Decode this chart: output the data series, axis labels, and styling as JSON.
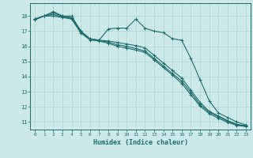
{
  "xlabel": "Humidex (Indice chaleur)",
  "xlim": [
    -0.5,
    23.5
  ],
  "ylim": [
    10.5,
    18.85
  ],
  "yticks": [
    11,
    12,
    13,
    14,
    15,
    16,
    17,
    18
  ],
  "xticks": [
    0,
    1,
    2,
    3,
    4,
    5,
    6,
    7,
    8,
    9,
    10,
    11,
    12,
    13,
    14,
    15,
    16,
    17,
    18,
    19,
    20,
    21,
    22,
    23
  ],
  "bg_color": "#cce9e9",
  "grid_color": "#aad4d4",
  "line_color": "#1a6b6b",
  "line1": [
    17.8,
    18.0,
    18.3,
    18.0,
    18.0,
    17.0,
    16.5,
    16.4,
    17.15,
    17.2,
    17.2,
    17.8,
    17.2,
    17.0,
    16.9,
    16.5,
    16.4,
    15.2,
    13.8,
    12.4,
    11.6,
    11.3,
    11.0,
    10.8
  ],
  "line2": [
    17.8,
    18.0,
    18.2,
    18.0,
    17.9,
    17.0,
    16.5,
    16.4,
    16.35,
    16.25,
    16.15,
    16.05,
    15.9,
    15.4,
    14.9,
    14.4,
    13.9,
    13.1,
    12.3,
    11.7,
    11.4,
    11.1,
    10.85,
    10.75
  ],
  "line3": [
    17.8,
    18.0,
    18.1,
    17.95,
    17.85,
    16.95,
    16.48,
    16.38,
    16.28,
    16.1,
    16.0,
    15.85,
    15.7,
    15.2,
    14.7,
    14.2,
    13.7,
    12.95,
    12.15,
    11.65,
    11.35,
    11.05,
    10.82,
    10.73
  ],
  "line4": [
    17.75,
    18.0,
    18.0,
    17.9,
    17.8,
    16.88,
    16.42,
    16.35,
    16.2,
    16.0,
    15.88,
    15.75,
    15.6,
    15.1,
    14.6,
    14.1,
    13.55,
    12.8,
    12.05,
    11.55,
    11.25,
    10.98,
    10.78,
    10.7
  ]
}
